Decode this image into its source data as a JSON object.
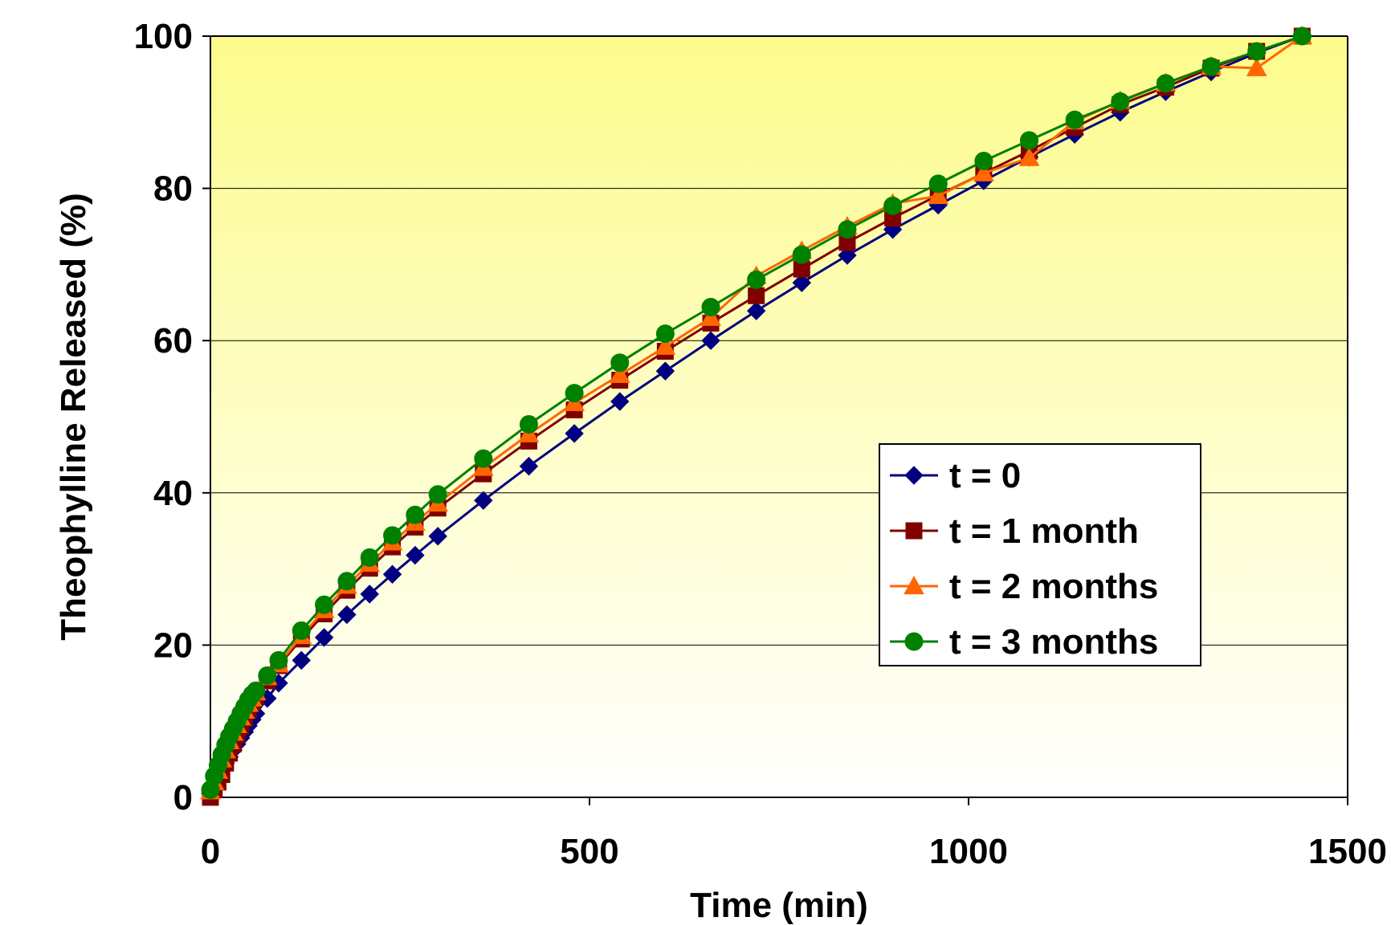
{
  "chart_data": {
    "type": "line",
    "xlabel": "Time (min)",
    "ylabel": "Theophylline Released (%)",
    "xlim": [
      0,
      1500
    ],
    "ylim": [
      0,
      100
    ],
    "x_ticks": [
      "0",
      "500",
      "1000",
      "1500"
    ],
    "y_ticks": [
      "0",
      "20",
      "40",
      "60",
      "80",
      "100"
    ],
    "grid": "horizontal",
    "legend_position": "right-middle",
    "background": "gradient yellow to white",
    "colors": {
      "plot_top": "#fcfc8c",
      "plot_bottom": "#ffffff",
      "gridline": "#000000"
    },
    "x": [
      0,
      5,
      10,
      15,
      20,
      25,
      30,
      35,
      40,
      45,
      50,
      55,
      60,
      75,
      90,
      120,
      150,
      180,
      210,
      240,
      270,
      300,
      360,
      420,
      480,
      540,
      600,
      660,
      720,
      780,
      840,
      900,
      960,
      1020,
      1080,
      1140,
      1200,
      1260,
      1320,
      1380,
      1440
    ],
    "series": [
      {
        "name": "t = 0",
        "color": "#000080",
        "marker": "diamond",
        "values": [
          0.5,
          1.5,
          2.5,
          3.5,
          4.5,
          5.3,
          6.2,
          7.0,
          7.8,
          8.6,
          9.4,
          10.2,
          11.0,
          13.0,
          15.0,
          18.0,
          21.0,
          24.0,
          26.7,
          29.3,
          31.8,
          34.3,
          39.0,
          43.5,
          47.8,
          52.0,
          56.0,
          60.0,
          63.9,
          67.6,
          71.2,
          74.6,
          77.8,
          81.0,
          84.1,
          87.1,
          90.0,
          92.7,
          95.3,
          97.8,
          100.0
        ]
      },
      {
        "name": "t = 1 month",
        "color": "#800000",
        "marker": "square",
        "values": [
          0.0,
          1.0,
          2.0,
          3.0,
          4.5,
          5.8,
          7.0,
          8.2,
          9.3,
          10.4,
          11.4,
          12.4,
          13.3,
          15.3,
          17.3,
          20.8,
          24.1,
          27.2,
          30.1,
          32.9,
          35.5,
          38.0,
          42.5,
          46.8,
          50.9,
          54.8,
          58.6,
          62.3,
          65.9,
          69.4,
          72.9,
          76.1,
          79.1,
          82.0,
          84.9,
          88.0,
          91.0,
          93.3,
          95.8,
          98.0,
          100.0
        ]
      },
      {
        "name": "t = 2 months",
        "color": "#ff6600",
        "marker": "triangle",
        "values": [
          0.8,
          2.0,
          3.5,
          5.0,
          6.2,
          7.4,
          8.5,
          9.5,
          10.5,
          11.4,
          12.3,
          13.0,
          13.8,
          15.8,
          17.5,
          21.2,
          24.6,
          27.8,
          30.7,
          33.5,
          36.1,
          38.6,
          43.3,
          47.7,
          51.8,
          55.5,
          59.2,
          63.0,
          68.5,
          71.8,
          75.0,
          78.0,
          79.0,
          82.0,
          84.0,
          88.8,
          91.5,
          93.8,
          96.0,
          95.8,
          100.0
        ]
      },
      {
        "name": "t = 3 months",
        "color": "#008000",
        "marker": "circle",
        "values": [
          1.0,
          2.8,
          4.2,
          5.6,
          6.9,
          8.0,
          9.0,
          10.0,
          11.0,
          11.9,
          12.8,
          13.5,
          14.0,
          16.0,
          18.0,
          21.9,
          25.3,
          28.4,
          31.5,
          34.4,
          37.1,
          39.8,
          44.5,
          49.0,
          53.1,
          57.1,
          60.9,
          64.4,
          68.0,
          71.3,
          74.6,
          77.7,
          80.6,
          83.6,
          86.3,
          89.0,
          91.4,
          93.8,
          96.0,
          98.0,
          100.0
        ]
      }
    ]
  }
}
